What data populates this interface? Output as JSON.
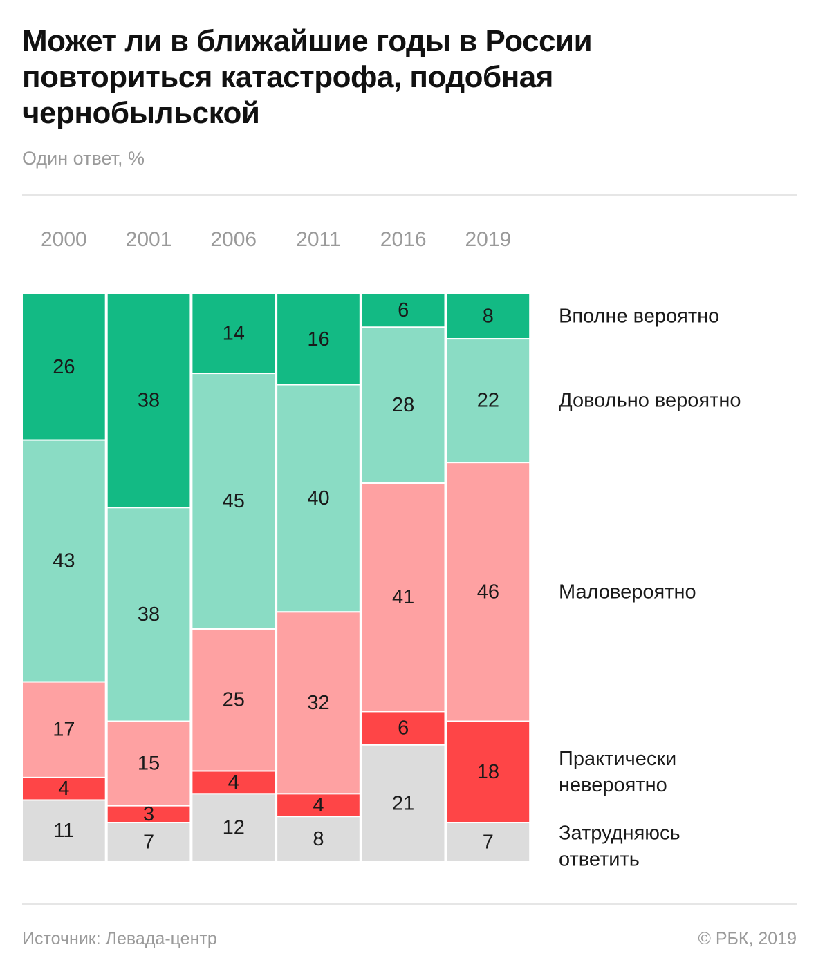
{
  "header": {
    "title": "Может ли в ближайшие годы в России повториться катастрофа, подобная чернобыльской",
    "subtitle": "Один ответ, %"
  },
  "footer": {
    "source": "Источник: Левада-центр",
    "copyright": "© РБК, 2019"
  },
  "colors": {
    "vpolne": "#13ba84",
    "dovolno": "#8adcc4",
    "malo": "#fea1a2",
    "prakticheski": "#fe4547",
    "zatrudnyayus": "#dcdcdc",
    "text": "#1a1a1a",
    "year_text": "#9a9a9a"
  },
  "chart_data": {
    "type": "bar",
    "stacked": "100%",
    "title": "Может ли в ближайшие годы в России повториться катастрофа, подобная чернобыльской",
    "subtitle": "Один ответ, %",
    "categories": [
      "2000",
      "2001",
      "2006",
      "2011",
      "2016",
      "2019"
    ],
    "series": [
      {
        "key": "vpolne",
        "name": "Вполне вероятно",
        "name_lines": [
          "Вполне вероятно"
        ],
        "values": [
          26,
          38,
          14,
          16,
          6,
          8
        ]
      },
      {
        "key": "dovolno",
        "name": "Довольно вероятно",
        "name_lines": [
          "Довольно вероятно"
        ],
        "values": [
          43,
          38,
          45,
          40,
          28,
          22
        ]
      },
      {
        "key": "malo",
        "name": "Маловероятно",
        "name_lines": [
          "Маловероятно"
        ],
        "values": [
          17,
          15,
          25,
          32,
          41,
          46
        ]
      },
      {
        "key": "prakticheski",
        "name": "Практически невероятно",
        "name_lines": [
          "Практически",
          "невероятно"
        ],
        "values": [
          4,
          3,
          4,
          4,
          6,
          18
        ]
      },
      {
        "key": "zatrudnyayus",
        "name": "Затрудняюсь ответить",
        "name_lines": [
          "Затрудняюсь",
          "ответить"
        ],
        "values": [
          11,
          7,
          12,
          8,
          21,
          7
        ]
      }
    ],
    "legend": "right",
    "ylim": [
      0,
      100
    ]
  }
}
